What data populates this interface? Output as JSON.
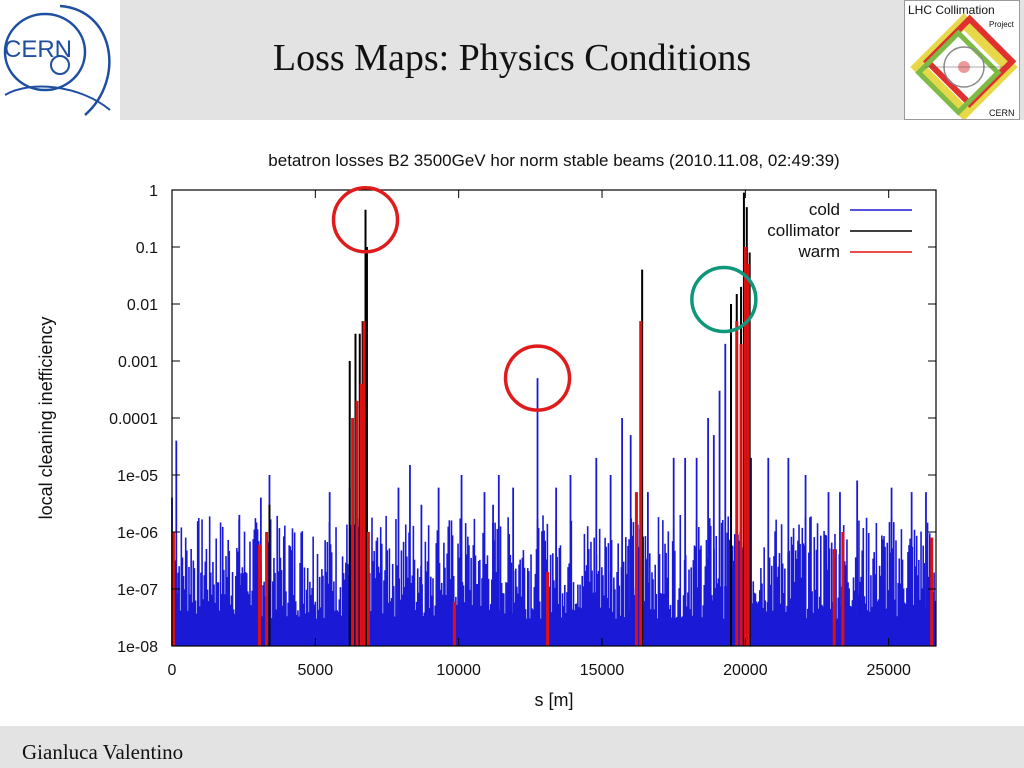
{
  "slide": {
    "title": "Loss Maps: Physics Conditions",
    "author": "Gianluca Valentino",
    "cern_logo_text": "CERN",
    "lhc_logo": {
      "line1": "LHC Collimation",
      "line2": "Project",
      "line3": "CERN"
    }
  },
  "chart_data": {
    "type": "bar",
    "title": "betatron losses B2 3500GeV hor norm stable beams (2010.11.08, 02:49:39)",
    "xlabel": "s [m]",
    "ylabel": "local cleaning inefficiency",
    "xlim": [
      0,
      26650
    ],
    "ylim": [
      1e-08,
      1
    ],
    "yscale": "log",
    "xticks": [
      0,
      5000,
      10000,
      15000,
      20000,
      25000
    ],
    "yticks": [
      {
        "value": 1,
        "label": "1"
      },
      {
        "value": 0.1,
        "label": "0.1"
      },
      {
        "value": 0.01,
        "label": "0.01"
      },
      {
        "value": 0.001,
        "label": "0.001"
      },
      {
        "value": 0.0001,
        "label": "0.0001"
      },
      {
        "value": 1e-05,
        "label": "1e-05"
      },
      {
        "value": 1e-06,
        "label": "1e-06"
      },
      {
        "value": 1e-07,
        "label": "1e-07"
      },
      {
        "value": 1e-08,
        "label": "1e-08"
      }
    ],
    "legend_position": "top-right",
    "series": [
      {
        "name": "cold",
        "color": "#1a1ad6",
        "background_range": [
          3e-08,
          2e-06
        ],
        "points": [
          [
            0,
            4e-06
          ],
          [
            150,
            4e-05
          ],
          [
            2350,
            2e-06
          ],
          [
            3100,
            4e-06
          ],
          [
            3400,
            1e-05
          ],
          [
            5500,
            5e-06
          ],
          [
            6200,
            6e-06
          ],
          [
            7900,
            6e-06
          ],
          [
            8300,
            1.5e-05
          ],
          [
            8700,
            3e-06
          ],
          [
            9300,
            6e-06
          ],
          [
            10100,
            1e-05
          ],
          [
            10900,
            5e-06
          ],
          [
            11200,
            3e-06
          ],
          [
            11400,
            1e-05
          ],
          [
            11900,
            6e-06
          ],
          [
            12750,
            0.0005
          ],
          [
            13400,
            6e-06
          ],
          [
            13900,
            1e-05
          ],
          [
            14800,
            2e-05
          ],
          [
            15300,
            1e-05
          ],
          [
            15700,
            0.0001
          ],
          [
            16000,
            5e-05
          ],
          [
            16600,
            5e-06
          ],
          [
            17500,
            2e-05
          ],
          [
            17900,
            2e-05
          ],
          [
            18300,
            2e-05
          ],
          [
            18700,
            0.0001
          ],
          [
            18900,
            5e-05
          ],
          [
            19100,
            0.0003
          ],
          [
            19300,
            0.002
          ],
          [
            19500,
            0.008
          ],
          [
            20200,
            2e-05
          ],
          [
            20800,
            2e-05
          ],
          [
            21500,
            2e-05
          ],
          [
            22100,
            1e-05
          ],
          [
            22900,
            5e-06
          ],
          [
            23300,
            5e-06
          ],
          [
            23900,
            8e-06
          ],
          [
            25100,
            6e-06
          ],
          [
            25800,
            5e-06
          ],
          [
            26300,
            5e-06
          ]
        ]
      },
      {
        "name": "collimator",
        "color": "#000000",
        "points": [
          [
            3400,
            3e-06
          ],
          [
            6200,
            0.001
          ],
          [
            6400,
            0.003
          ],
          [
            6550,
            0.003
          ],
          [
            6650,
            0.005
          ],
          [
            6750,
            0.45
          ],
          [
            6800,
            0.1
          ],
          [
            16400,
            0.04
          ],
          [
            19500,
            0.01
          ],
          [
            19700,
            0.015
          ],
          [
            19850,
            0.02
          ],
          [
            19950,
            0.9
          ],
          [
            20050,
            0.5
          ],
          [
            20150,
            0.08
          ]
        ]
      },
      {
        "name": "warm",
        "color": "#e01010",
        "points": [
          [
            50,
            1e-06
          ],
          [
            3050,
            6e-07
          ],
          [
            3300,
            1e-06
          ],
          [
            6300,
            0.0001
          ],
          [
            6450,
            0.0002
          ],
          [
            6600,
            0.0004
          ],
          [
            6700,
            0.005
          ],
          [
            6850,
            1e-06
          ],
          [
            9850,
            6e-08
          ],
          [
            13100,
            2e-07
          ],
          [
            16200,
            5e-06
          ],
          [
            16350,
            0.005
          ],
          [
            19700,
            0.005
          ],
          [
            19850,
            0.002
          ],
          [
            20000,
            0.1
          ],
          [
            20100,
            0.05
          ],
          [
            23100,
            5e-07
          ],
          [
            23400,
            1e-06
          ],
          [
            26500,
            8e-07
          ]
        ]
      }
    ],
    "annotations": [
      {
        "shape": "circle",
        "color": "#e01b1b",
        "center": [
          6750,
          0.3
        ]
      },
      {
        "shape": "circle",
        "color": "#e01b1b",
        "center": [
          12750,
          0.0005
        ]
      },
      {
        "shape": "circle",
        "color": "#10977a",
        "center": [
          19250,
          0.012
        ]
      }
    ]
  }
}
